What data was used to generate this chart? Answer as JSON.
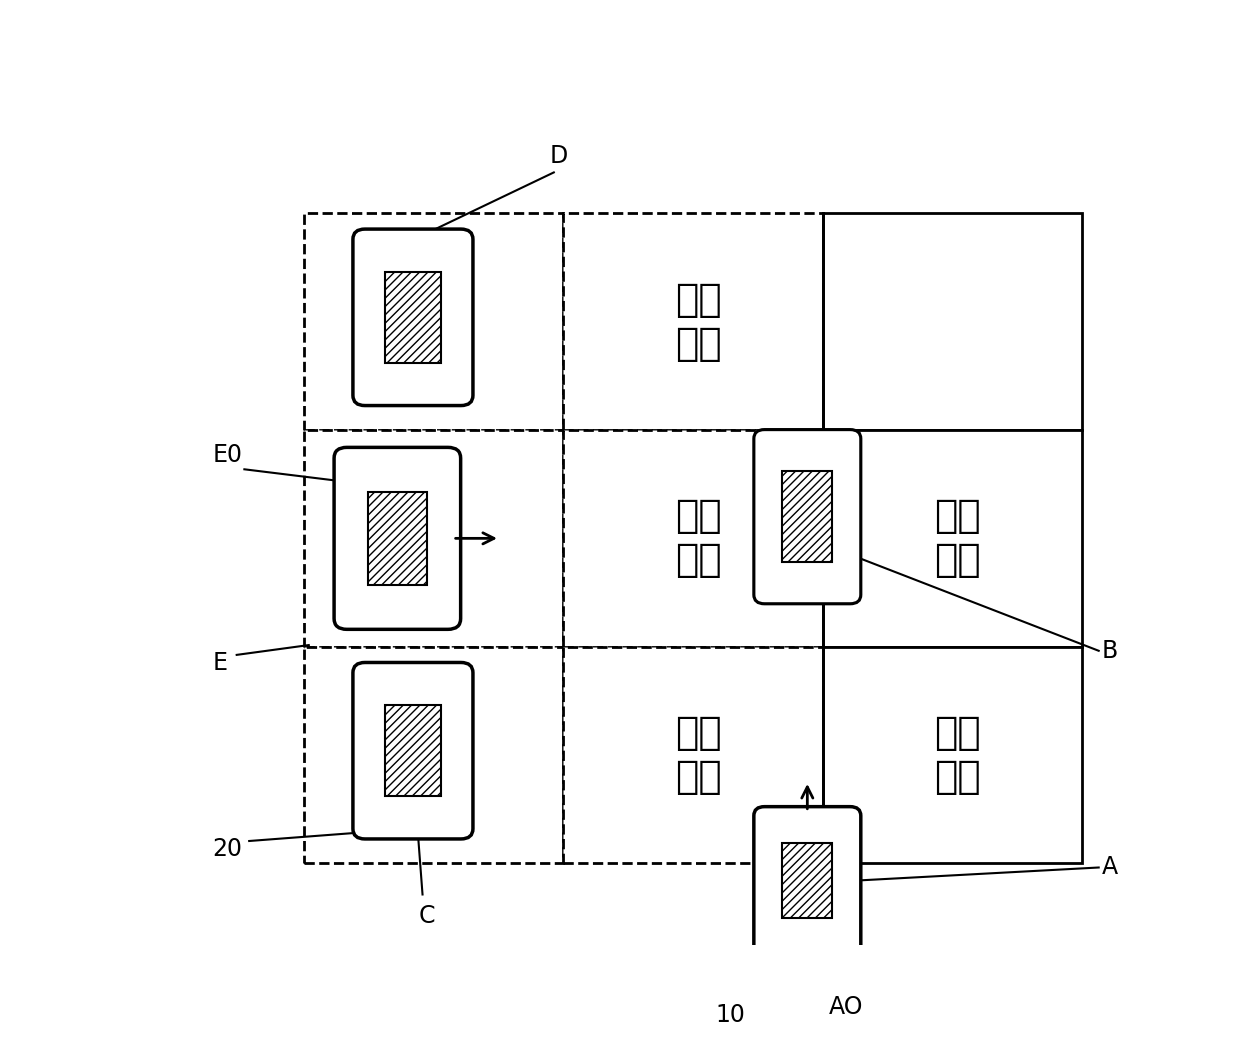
{
  "bg_color": "#ffffff",
  "fig_width": 12.4,
  "fig_height": 10.62,
  "gl": 0.155,
  "gb": 0.1,
  "gr": 0.965,
  "gt": 0.895,
  "text_cells": [
    [
      0,
      1,
      "第四\n笼车"
    ],
    [
      1,
      1,
      "第五\n笼车"
    ],
    [
      1,
      2,
      "第二\n笼车"
    ],
    [
      2,
      1,
      "第三\n笼车"
    ],
    [
      2,
      2,
      "第一\n笼车"
    ]
  ],
  "text_fontsize": 28,
  "ann_fontsize": 17,
  "lw": 2.0,
  "lw_ann": 1.5,
  "dev_lw": 2.5
}
